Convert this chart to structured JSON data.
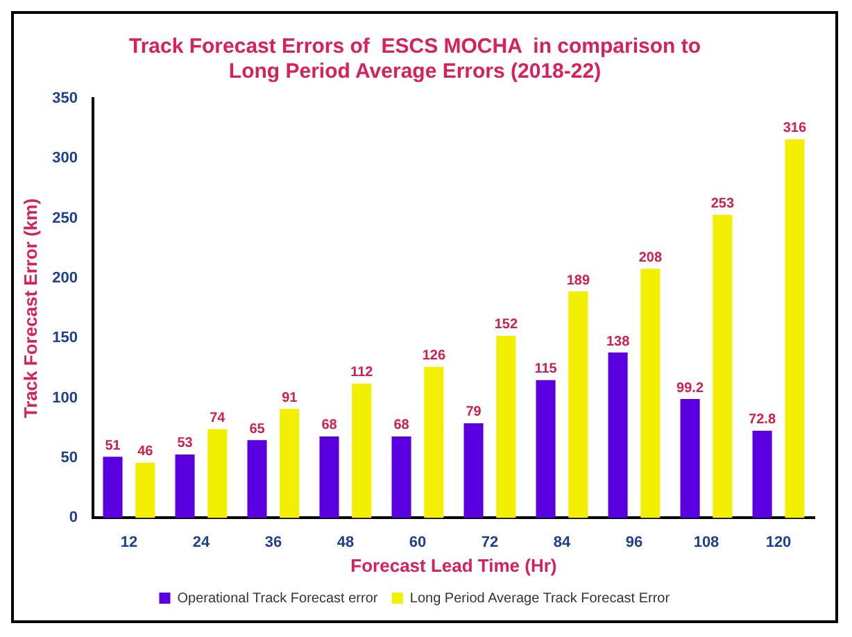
{
  "chart_data": {
    "type": "bar",
    "title": "Track Forecast Errors of  ESCS MOCHA  in comparison to\nLong Period Average Errors (2018-22)",
    "xlabel": "Forecast Lead Time (Hr)",
    "ylabel": "Track Forecast Error (km)",
    "categories": [
      "12",
      "24",
      "36",
      "48",
      "60",
      "72",
      "84",
      "96",
      "108",
      "120"
    ],
    "series": [
      {
        "name": "Operational Track Forecast error",
        "color": "#5a00e0",
        "values": [
          51,
          53,
          65,
          68,
          68,
          79,
          115,
          138,
          99.2,
          72.8
        ]
      },
      {
        "name": "Long Period Average Track Forecast Error",
        "color": "#f2f000",
        "values": [
          46,
          74,
          91,
          112,
          126,
          152,
          189,
          208,
          253,
          316
        ]
      }
    ],
    "ylim": [
      0,
      350
    ],
    "yticks": [
      0,
      50,
      100,
      150,
      200,
      250,
      300,
      350
    ],
    "data_labels": true,
    "legend": "bottom",
    "grid": false
  }
}
